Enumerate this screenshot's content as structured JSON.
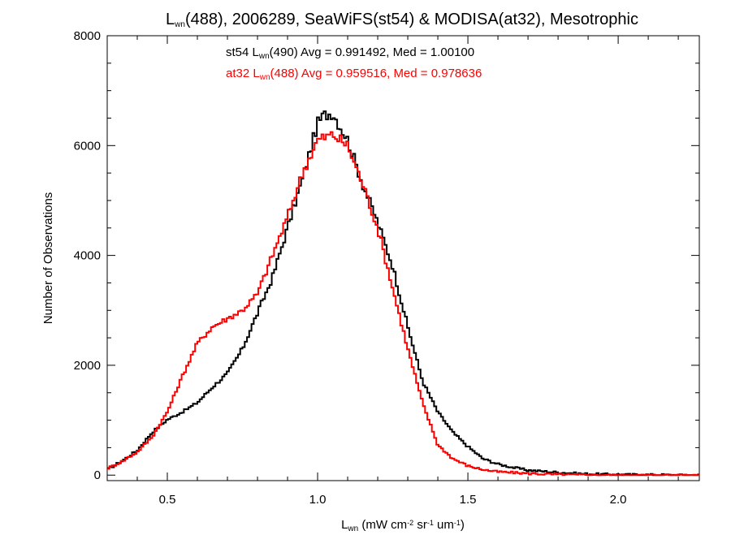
{
  "chart_data": {
    "type": "line",
    "title": {
      "main": "L",
      "sub": "wn",
      "rest": "(488), 2006289, SeaWiFS(st54) & MODISA(at32), Mesotrophic"
    },
    "xlabel": {
      "main": "L",
      "sub": "wn",
      "rest": " (mW cm",
      "sup1": "-2",
      "mid": " sr",
      "sup2": "-1",
      "end": " um",
      "sup3": "-1",
      "close": ")"
    },
    "ylabel": "Number of Observations",
    "xlim": [
      0.3,
      2.27
    ],
    "ylim": [
      -100,
      8000
    ],
    "x_ticks": [
      0.5,
      1.0,
      1.5,
      2.0
    ],
    "x_tick_labels": [
      "0.5",
      "1.0",
      "1.5",
      "2.0"
    ],
    "y_ticks": [
      0,
      2000,
      4000,
      6000,
      8000
    ],
    "y_tick_labels": [
      "0",
      "2000",
      "4000",
      "6000",
      "8000"
    ],
    "grid": false,
    "annotations": [
      {
        "prefix": "st54 L",
        "sub": "wn",
        "suffix": "(490) Avg = 0.991492, Med = 1.00100",
        "color": "#000000"
      },
      {
        "prefix": "at32 L",
        "sub": "wn",
        "suffix": "(488) Avg = 0.959516, Med = 0.978636",
        "color": "#ff0000"
      }
    ],
    "series": [
      {
        "color": "#000000",
        "points": [
          [
            0.3,
            100
          ],
          [
            0.35,
            260
          ],
          [
            0.4,
            450
          ],
          [
            0.45,
            780
          ],
          [
            0.5,
            1010
          ],
          [
            0.55,
            1150
          ],
          [
            0.6,
            1320
          ],
          [
            0.65,
            1600
          ],
          [
            0.7,
            1850
          ],
          [
            0.75,
            2300
          ],
          [
            0.8,
            2950
          ],
          [
            0.85,
            3600
          ],
          [
            0.9,
            4500
          ],
          [
            0.95,
            5400
          ],
          [
            1.0,
            6400
          ],
          [
            1.02,
            6550
          ],
          [
            1.05,
            6600
          ],
          [
            1.08,
            6300
          ],
          [
            1.1,
            6100
          ],
          [
            1.15,
            5300
          ],
          [
            1.2,
            4600
          ],
          [
            1.25,
            3800
          ],
          [
            1.3,
            2700
          ],
          [
            1.35,
            1700
          ],
          [
            1.4,
            1150
          ],
          [
            1.45,
            780
          ],
          [
            1.5,
            520
          ],
          [
            1.55,
            300
          ],
          [
            1.6,
            200
          ],
          [
            1.65,
            140
          ],
          [
            1.7,
            90
          ],
          [
            1.8,
            50
          ],
          [
            1.9,
            20
          ],
          [
            2.0,
            10
          ],
          [
            2.27,
            0
          ]
        ]
      },
      {
        "color": "#ff0000",
        "points": [
          [
            0.3,
            120
          ],
          [
            0.35,
            250
          ],
          [
            0.4,
            420
          ],
          [
            0.45,
            700
          ],
          [
            0.5,
            1150
          ],
          [
            0.55,
            1800
          ],
          [
            0.6,
            2400
          ],
          [
            0.65,
            2700
          ],
          [
            0.7,
            2850
          ],
          [
            0.75,
            3000
          ],
          [
            0.8,
            3300
          ],
          [
            0.85,
            4000
          ],
          [
            0.9,
            4700
          ],
          [
            0.95,
            5500
          ],
          [
            1.0,
            6100
          ],
          [
            1.05,
            6200
          ],
          [
            1.1,
            6000
          ],
          [
            1.15,
            5300
          ],
          [
            1.2,
            4500
          ],
          [
            1.25,
            3400
          ],
          [
            1.3,
            2300
          ],
          [
            1.35,
            1300
          ],
          [
            1.4,
            550
          ],
          [
            1.45,
            300
          ],
          [
            1.5,
            170
          ],
          [
            1.55,
            100
          ],
          [
            1.6,
            60
          ],
          [
            1.7,
            30
          ],
          [
            1.8,
            10
          ],
          [
            2.0,
            0
          ],
          [
            2.27,
            0
          ]
        ]
      }
    ]
  }
}
